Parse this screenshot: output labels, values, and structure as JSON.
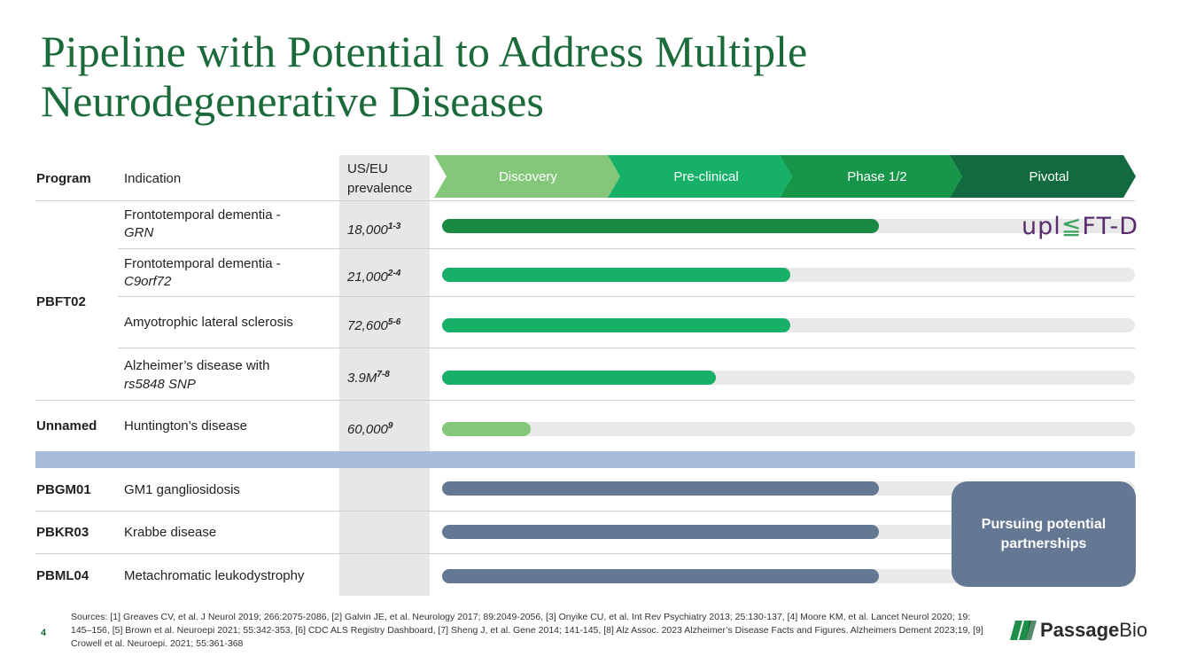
{
  "title": "Pipeline with Potential to Address Multiple Neurodegenerative Diseases",
  "header": {
    "program": "Program",
    "indication": "Indication",
    "prevalence_line1": "US/EU",
    "prevalence_line2": "prevalence",
    "phases": [
      "Discovery",
      "Pre-clinical",
      "Phase 1/2",
      "Pivotal"
    ]
  },
  "phase_colors": [
    "#84c67a",
    "#16b069",
    "#179548",
    "#116b3e"
  ],
  "rows": [
    {
      "program": "",
      "indication_line1": "Frontotemporal dementia -",
      "indication_line2": "GRN",
      "prevalence": "18,000",
      "prevalence_ref": "1-3",
      "progress": 0.63,
      "color": "#1a8a42"
    },
    {
      "program": "",
      "indication_line1": "Frontotemporal dementia -",
      "indication_line2": "C9orf72",
      "prevalence": "21,000",
      "prevalence_ref": "2-4",
      "progress": 0.502,
      "color": "#16b069"
    },
    {
      "program": "PBFT02",
      "indication_line1": "Amyotrophic lateral sclerosis",
      "indication_line2": "",
      "prevalence": "72,600",
      "prevalence_ref": "5-6",
      "progress": 0.502,
      "color": "#16b069"
    },
    {
      "program": "",
      "indication_line1": "Alzheimer’s disease with",
      "indication_line2": "rs5848 SNP",
      "prevalence": "3.9M",
      "prevalence_ref": "7-8",
      "progress": 0.395,
      "color": "#16b069"
    },
    {
      "program": "Unnamed",
      "indication_line1": "Huntington’s disease",
      "indication_line2": "",
      "prevalence": "60,000",
      "prevalence_ref": "9",
      "progress": 0.128,
      "color": "#84c67a"
    }
  ],
  "partner_rows": [
    {
      "program": "PBGM01",
      "indication": "GM1 gangliosidosis",
      "progress": 0.63,
      "color": "#647893"
    },
    {
      "program": "PBKR03",
      "indication": "Krabbe disease",
      "progress": 0.63,
      "color": "#647893"
    },
    {
      "program": "PBML04",
      "indication": "Metachromatic leukodystrophy",
      "progress": 0.63,
      "color": "#647893"
    }
  ],
  "partner_box_line1": "Pursuing potential",
  "partner_box_line2": "partnerships",
  "uplift_logo": {
    "part1": "upl",
    "part2": "FT-D"
  },
  "page_number": "4",
  "sources": "Sources: [1] Greaves CV, et al.  J Neurol 2019; 266:2075-2086, [2] Galvin JE, et al.  Neurology 2017; 89:2049-2056, [3] Onyike CU, et al.  Int Rev Psychiatry 2013; 25:130-137, [4] Moore KM, et al.  Lancet Neurol 2020; 19: 145–156, [5] Brown et al.  Neuroepi 2021; 55:342-353, [6] CDC ALS Registry Dashboard, [7] Sheng J, et al.  Gene 2014; 141-145, [8] Alz Assoc. 2023 Alzheimer’s Disease Facts and Figures. Alzheimers Dement 2023;19, [9] Crowell et al. Neuroepi. 2021; 55:361-368",
  "logo": {
    "bold": "Passage",
    "light": "Bio"
  }
}
